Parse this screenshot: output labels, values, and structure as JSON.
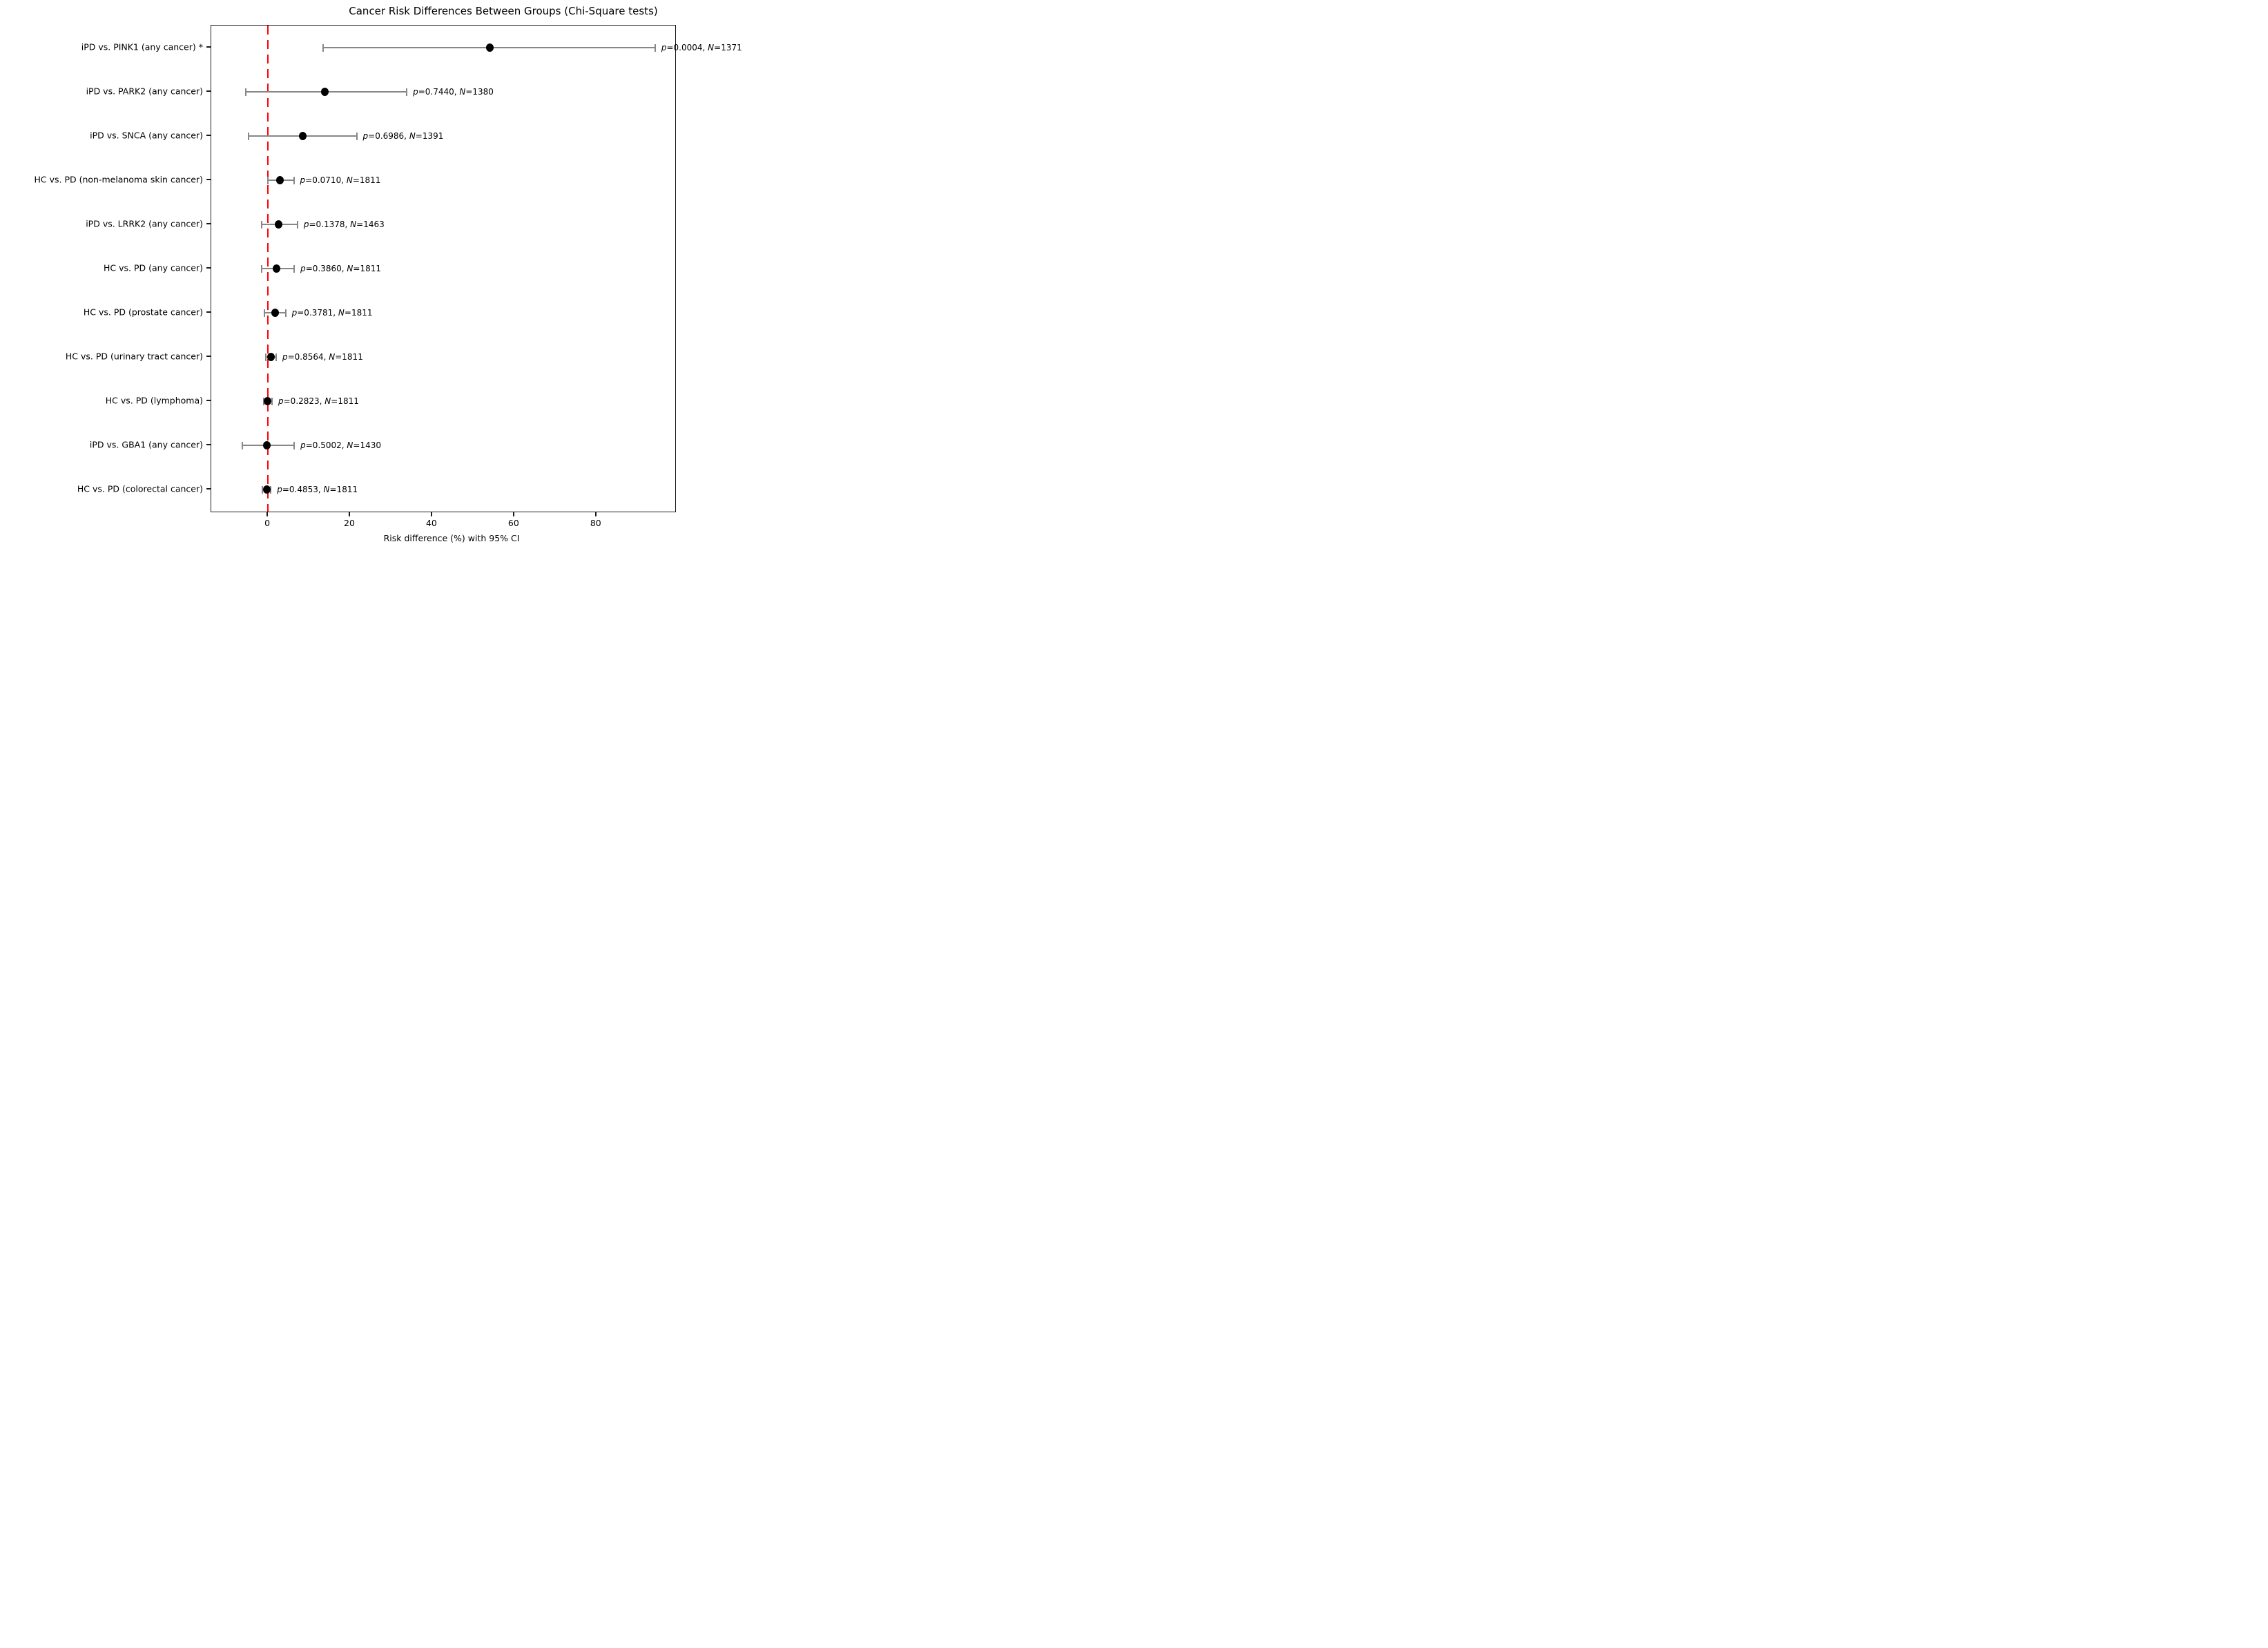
{
  "chart_data": {
    "type": "scatter",
    "subtype": "forest-plot-horizontal-errorbars",
    "title": "Cancer Risk Differences Between Groups (Chi-Square tests)",
    "xlabel": "Risk difference (%) with 95% CI",
    "x_ticks": [
      0,
      20,
      40,
      60,
      80
    ],
    "xlim": [
      -13.8,
      99.2
    ],
    "grid": false,
    "legend": false,
    "zero_line": {
      "x": 0,
      "color": "#ff0000",
      "style": "dashed"
    },
    "marker_color": "#000000",
    "errorbar_color": "#878787",
    "p_symbol": "p",
    "n_symbol": "N",
    "rows": [
      {
        "label": "iPD vs. PINK1 (any cancer) *",
        "value": 54.0,
        "ci_low": 13.5,
        "ci_high": 94.3,
        "p": "0.0004",
        "n": "1371",
        "annotation": "p=0.0004, N=1371",
        "significant": true
      },
      {
        "label": "iPD vs. PARK2 (any cancer)",
        "value": 13.8,
        "ci_low": -5.4,
        "ci_high": 33.8,
        "p": "0.7440",
        "n": "1380",
        "annotation": "p=0.7440, N=1380",
        "significant": false
      },
      {
        "label": "iPD vs. SNCA (any cancer)",
        "value": 8.5,
        "ci_low": -4.8,
        "ci_high": 21.6,
        "p": "0.6986",
        "n": "1391",
        "annotation": "p=0.6986, N=1391",
        "significant": false
      },
      {
        "label": "HC vs. PD (non-melanoma skin cancer)",
        "value": 3.0,
        "ci_low": 0.0,
        "ci_high": 6.3,
        "p": "0.0710",
        "n": "1811",
        "annotation": "p=0.0710, N=1811",
        "significant": false
      },
      {
        "label": "iPD vs. LRRK2 (any cancer)",
        "value": 2.6,
        "ci_low": -1.5,
        "ci_high": 7.2,
        "p": "0.1378",
        "n": "1463",
        "annotation": "p=0.1378, N=1463",
        "significant": false
      },
      {
        "label": "HC vs. PD (any cancer)",
        "value": 2.1,
        "ci_low": -1.5,
        "ci_high": 6.4,
        "p": "0.3860",
        "n": "1811",
        "annotation": "p=0.3860, N=1811",
        "significant": false
      },
      {
        "label": "HC vs. PD (prostate cancer)",
        "value": 1.7,
        "ci_low": -0.8,
        "ci_high": 4.3,
        "p": "0.3781",
        "n": "1811",
        "annotation": "p=0.3781, N=1811",
        "significant": false
      },
      {
        "label": "HC vs. PD (urinary tract cancer)",
        "value": 0.7,
        "ci_low": -0.5,
        "ci_high": 2.0,
        "p": "0.8564",
        "n": "1811",
        "annotation": "p=0.8564, N=1811",
        "significant": false
      },
      {
        "label": "HC vs. PD (lymphoma)",
        "value": -0.1,
        "ci_low": -1.1,
        "ci_high": 1.0,
        "p": "0.2823",
        "n": "1811",
        "annotation": "p=0.2823, N=1811",
        "significant": false
      },
      {
        "label": "iPD vs. GBA1 (any cancer)",
        "value": -0.2,
        "ci_low": -6.3,
        "ci_high": 6.4,
        "p": "0.5002",
        "n": "1430",
        "annotation": "p=0.5002, N=1430",
        "significant": false
      },
      {
        "label": "HC vs. PD (colorectal cancer)",
        "value": -0.3,
        "ci_low": -1.3,
        "ci_high": 0.7,
        "p": "0.4853",
        "n": "1811",
        "annotation": "p=0.4853, N=1811",
        "significant": false
      }
    ]
  }
}
